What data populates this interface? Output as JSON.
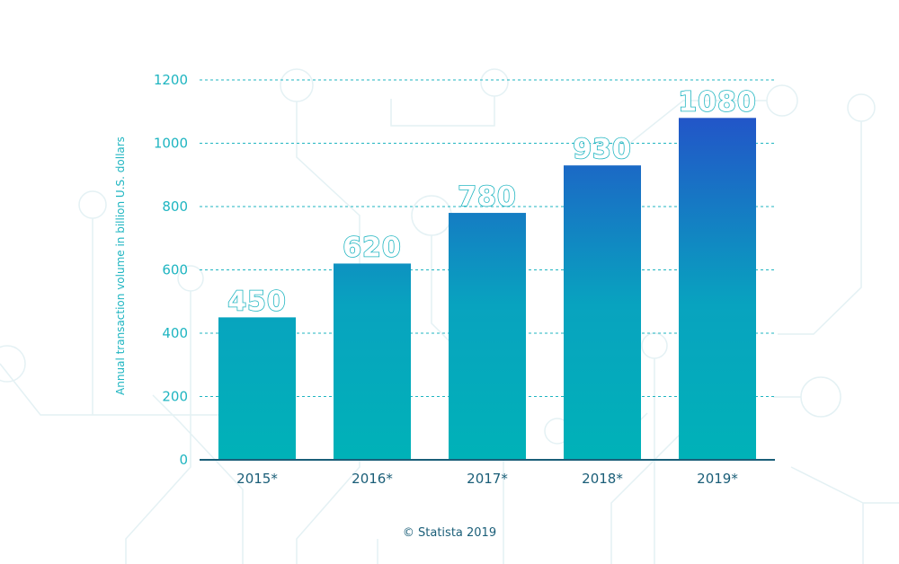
{
  "chart_data": {
    "type": "bar",
    "title": "",
    "xlabel": "",
    "ylabel": "Annual transaction volume in billion U.S. dollars",
    "categories": [
      "2015*",
      "2016*",
      "2017*",
      "2018*",
      "2019*"
    ],
    "values": [
      450,
      620,
      780,
      930,
      1080
    ],
    "value_labels": [
      "450",
      "620",
      "780",
      "930",
      "1080"
    ],
    "ylim": [
      0,
      1200
    ],
    "yticks": [
      0,
      200,
      400,
      600,
      800,
      1000,
      1200
    ],
    "grid": true,
    "legend": "none",
    "colors": {
      "bar_bottom": "#00b2b8",
      "bar_top": "#2255c8",
      "axis": "#1a5e78",
      "tick_text": "#1fb5c1",
      "grid": "#1fb5c1"
    }
  },
  "credit": "© Statista 2019"
}
